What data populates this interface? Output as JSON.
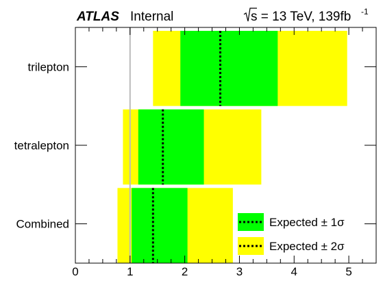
{
  "header": {
    "experiment": "ATLAS",
    "status": "Internal",
    "energy_prefix": "s = 13 TeV, 139fb",
    "energy_sup": "-1"
  },
  "chart_data": {
    "type": "bar",
    "subtype": "expected-limit-bands",
    "x_ticks": [
      "0",
      "1",
      "2",
      "3",
      "4",
      "5"
    ],
    "xlim": [
      0,
      5.5
    ],
    "reference_line_x": 1.0,
    "categories": [
      "trilepton",
      "tetralepton",
      "Combined"
    ],
    "expected": [
      2.65,
      1.6,
      1.42
    ],
    "band_1sigma": [
      [
        1.92,
        3.7
      ],
      [
        1.15,
        2.35
      ],
      [
        1.03,
        2.05
      ]
    ],
    "band_2sigma": [
      [
        1.42,
        4.97
      ],
      [
        0.87,
        3.4
      ],
      [
        0.77,
        2.88
      ]
    ],
    "legend": [
      {
        "label": "Expected  ± 1σ",
        "color": "#00ff00"
      },
      {
        "label": "Expected  ± 2σ",
        "color": "#ffff00"
      }
    ],
    "legend_position": "bottom-right",
    "colors": {
      "one_sigma": "#00ff00",
      "two_sigma": "#ffff00",
      "expected_line": "#000000",
      "reference_line": "#bbbbbb"
    }
  }
}
